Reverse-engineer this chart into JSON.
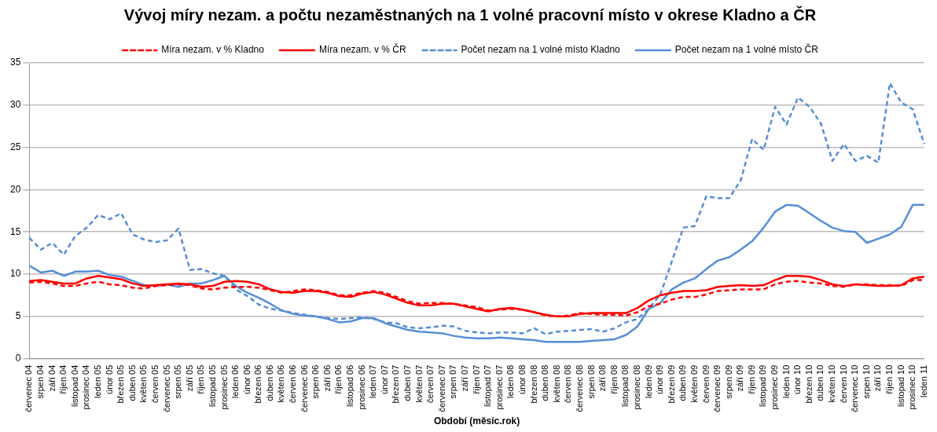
{
  "chart_data": {
    "type": "line",
    "title": "Vývoj míry nezam. a počtu nezaměstnaných na 1 volné pracovní místo v okrese Kladno a ČR",
    "xlabel": "Období (měsíc.rok)",
    "categories": [
      "červenec 04",
      "srpen 04",
      "září 04",
      "říjen 04",
      "listopad 04",
      "prosinec 04",
      "leden 05",
      "únor 05",
      "březen 05",
      "duben 05",
      "květen 05",
      "červen 05",
      "červenec 05",
      "srpen 05",
      "září 05",
      "říjen 05",
      "listopad 05",
      "prosinec 05",
      "leden 06",
      "únor 06",
      "březen 06",
      "duben 06",
      "květen 06",
      "červen 06",
      "červenec 06",
      "srpen 06",
      "září 06",
      "říjen 06",
      "listopad 06",
      "prosinec 06",
      "leden 07",
      "únor 07",
      "březen 07",
      "duben 07",
      "květen 07",
      "červen 07",
      "červenec 07",
      "srpen 07",
      "září 07",
      "říjen 07",
      "listopad 07",
      "prosinec 07",
      "leden 08",
      "únor 08",
      "březen 08",
      "duben 08",
      "květen 08",
      "červen 08",
      "červenec 08",
      "srpen 08",
      "září 08",
      "říjen 08",
      "listopad 08",
      "prosinec 08",
      "leden 09",
      "únor 09",
      "březen 09",
      "duben 09",
      "květen 09",
      "červen 09",
      "červenec 09",
      "srpen 09",
      "září 09",
      "říjen 09",
      "listopad 09",
      "prosinec 09",
      "leden 10",
      "únor 10",
      "březen 10",
      "duben 10",
      "květen 10",
      "červen 10",
      "červenec 10",
      "srpen 10",
      "září 10",
      "říjen 10",
      "listopad 10",
      "prosinec 10",
      "leden 11"
    ],
    "series": [
      {
        "name": "Míra nezam. v % Kladno",
        "color": "#ff0000",
        "line_style": "dashed",
        "values": [
          9.0,
          9.1,
          8.9,
          8.6,
          8.6,
          8.9,
          9.1,
          8.8,
          8.7,
          8.4,
          8.3,
          8.6,
          8.7,
          8.8,
          8.7,
          8.3,
          8.2,
          8.4,
          8.5,
          8.5,
          8.4,
          8.1,
          7.8,
          8.0,
          8.2,
          8.1,
          7.9,
          7.5,
          7.5,
          7.8,
          8.0,
          7.8,
          7.3,
          6.8,
          6.5,
          6.6,
          6.6,
          6.5,
          6.3,
          6.1,
          5.7,
          5.8,
          5.9,
          5.8,
          5.5,
          5.1,
          5.0,
          5.1,
          5.4,
          5.3,
          5.2,
          5.2,
          5.1,
          5.5,
          6.2,
          6.5,
          7.0,
          7.3,
          7.3,
          7.6,
          8.0,
          8.1,
          8.2,
          8.2,
          8.2,
          8.8,
          9.1,
          9.2,
          9.0,
          8.9,
          8.6,
          8.5,
          8.8,
          8.8,
          8.7,
          8.7,
          8.6,
          9.3,
          9.3
        ]
      },
      {
        "name": "Míra nezam. v % ČR",
        "color": "#ff0000",
        "line_style": "solid",
        "values": [
          9.2,
          9.3,
          9.1,
          8.9,
          8.9,
          9.5,
          9.8,
          9.6,
          9.4,
          8.9,
          8.6,
          8.7,
          8.8,
          8.9,
          8.8,
          8.5,
          8.6,
          9.1,
          9.2,
          9.1,
          8.8,
          8.2,
          7.9,
          7.8,
          8.0,
          8.0,
          7.8,
          7.4,
          7.3,
          7.7,
          7.9,
          7.6,
          7.1,
          6.6,
          6.3,
          6.3,
          6.5,
          6.5,
          6.2,
          5.9,
          5.6,
          5.9,
          6.0,
          5.8,
          5.5,
          5.2,
          5.0,
          5.0,
          5.3,
          5.4,
          5.4,
          5.4,
          5.4,
          6.0,
          6.9,
          7.5,
          7.8,
          8.0,
          8.0,
          8.1,
          8.5,
          8.6,
          8.7,
          8.6,
          8.7,
          9.3,
          9.8,
          9.8,
          9.7,
          9.3,
          8.8,
          8.6,
          8.8,
          8.7,
          8.6,
          8.6,
          8.7,
          9.5,
          9.7
        ]
      },
      {
        "name": "Počet nezam na 1 volné místo Kladno",
        "color": "#558ed5",
        "line_style": "dashed",
        "values": [
          14.3,
          12.9,
          13.7,
          12.3,
          14.5,
          15.5,
          17.0,
          16.5,
          17.2,
          14.7,
          14.1,
          13.8,
          14.0,
          15.4,
          10.5,
          10.6,
          10.1,
          9.8,
          8.2,
          7.4,
          6.4,
          5.9,
          5.7,
          5.4,
          5.2,
          5.0,
          4.8,
          4.7,
          4.8,
          4.9,
          4.7,
          4.3,
          4.2,
          3.7,
          3.6,
          3.7,
          3.9,
          3.8,
          3.3,
          3.1,
          3.0,
          3.1,
          3.1,
          3.0,
          3.6,
          2.9,
          3.2,
          3.3,
          3.4,
          3.5,
          3.2,
          3.6,
          4.3,
          4.7,
          5.9,
          7.6,
          11.5,
          15.5,
          15.7,
          19.2,
          19.0,
          19.0,
          21.1,
          26.0,
          24.7,
          29.8,
          27.7,
          30.9,
          29.8,
          27.8,
          23.4,
          25.4,
          23.4,
          24.0,
          23.2,
          32.6,
          30.3,
          29.5,
          25.4
        ]
      },
      {
        "name": "Počet nezam na 1 volné místo ČR",
        "color": "#558ed5",
        "line_style": "solid",
        "values": [
          11.0,
          10.2,
          10.4,
          9.8,
          10.3,
          10.3,
          10.4,
          9.9,
          9.7,
          9.2,
          8.7,
          8.6,
          8.8,
          8.5,
          8.9,
          8.9,
          9.3,
          9.8,
          8.6,
          7.8,
          7.2,
          6.5,
          5.7,
          5.3,
          5.1,
          5.0,
          4.7,
          4.3,
          4.4,
          4.8,
          4.8,
          4.2,
          3.8,
          3.4,
          3.2,
          3.1,
          3.0,
          2.7,
          2.5,
          2.4,
          2.4,
          2.5,
          2.4,
          2.3,
          2.2,
          2.0,
          2.0,
          2.0,
          2.0,
          2.1,
          2.2,
          2.3,
          2.8,
          3.8,
          5.9,
          6.6,
          8.2,
          9.0,
          9.5,
          10.6,
          11.6,
          12.0,
          12.9,
          13.9,
          15.5,
          17.4,
          18.2,
          18.1,
          17.2,
          16.3,
          15.5,
          15.1,
          15.0,
          13.7,
          14.2,
          14.7,
          15.6,
          18.2,
          18.2
        ]
      }
    ],
    "ylim": [
      0,
      35
    ],
    "yticks": [
      0,
      5,
      10,
      15,
      20,
      25,
      30,
      35
    ],
    "grid": "y",
    "legend": "top",
    "marker": "none"
  }
}
